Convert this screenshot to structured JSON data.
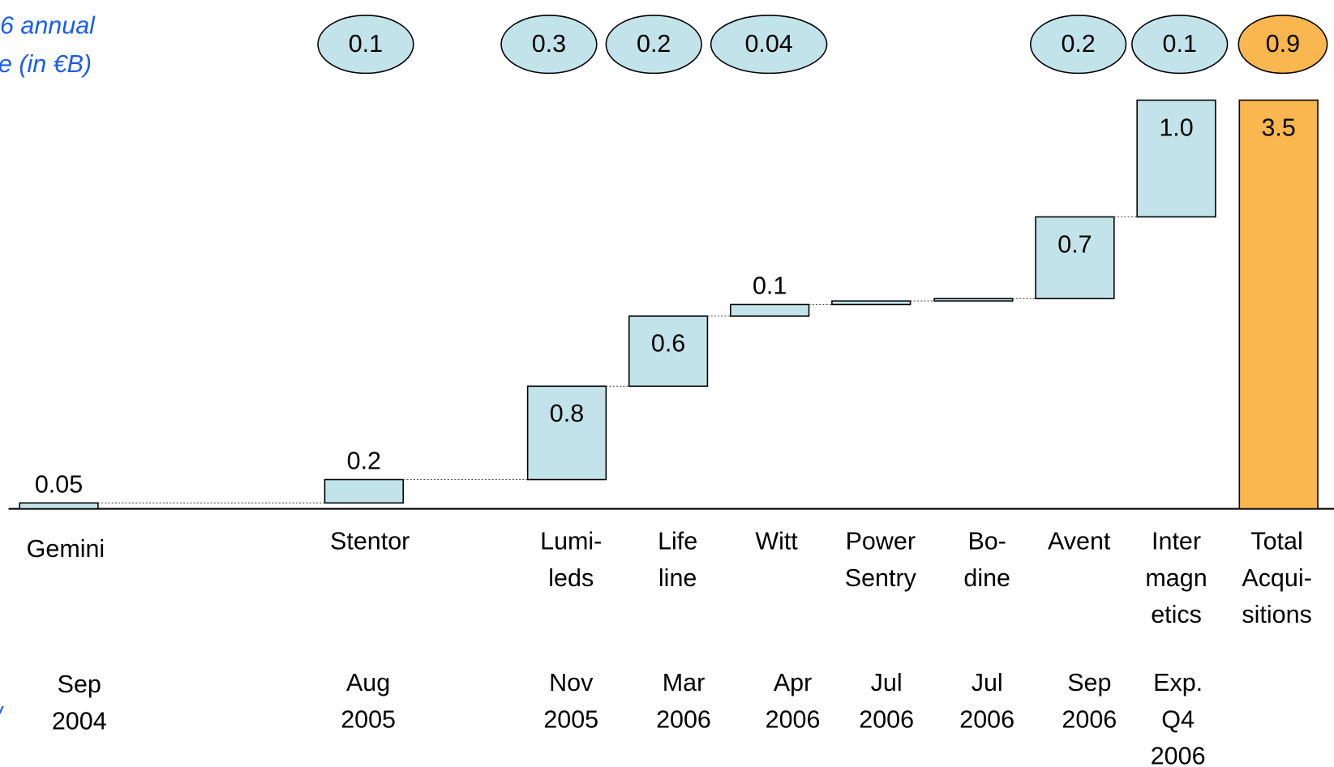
{
  "chart_data": {
    "type": "waterfall",
    "annotations": [
      "6 annual",
      "e (in €B)",
      "/"
    ],
    "categories": [
      [
        "Gemini"
      ],
      [
        "Stentor"
      ],
      [
        "Lumi-",
        "leds"
      ],
      [
        "Life",
        "line"
      ],
      [
        "Witt"
      ],
      [
        "Power",
        "Sentry"
      ],
      [
        "Bo-",
        "dine"
      ],
      [
        "Avent"
      ],
      [
        "Inter",
        "magn",
        "etics"
      ],
      [
        "Total",
        "Acqui-",
        "sitions"
      ]
    ],
    "dates": [
      [
        "Sep",
        "2004"
      ],
      [
        "Aug",
        "2005"
      ],
      [
        "Nov",
        "2005"
      ],
      [
        "Mar",
        "2006"
      ],
      [
        "Apr",
        "2006"
      ],
      [
        "Jul",
        "2006"
      ],
      [
        "Jul",
        "2006"
      ],
      [
        "Sep",
        "2006"
      ],
      [
        "Exp.",
        "Q4",
        "2006"
      ],
      null
    ],
    "values": [
      0.05,
      0.2,
      0.8,
      0.6,
      0.1,
      0.03,
      0.02,
      0.7,
      1.0,
      3.5
    ],
    "value_labels": [
      "0.05",
      "0.2",
      "0.8",
      "0.6",
      "0.1",
      null,
      null,
      "0.7",
      "1.0",
      "3.5"
    ],
    "is_total": [
      false,
      false,
      false,
      false,
      false,
      false,
      false,
      false,
      false,
      true
    ],
    "revenue_values": [
      null,
      0.1,
      0.3,
      0.2,
      0.04,
      null,
      null,
      0.2,
      0.1,
      0.9
    ],
    "color": "#c3e3ea",
    "total_color": "#fbb74f"
  }
}
